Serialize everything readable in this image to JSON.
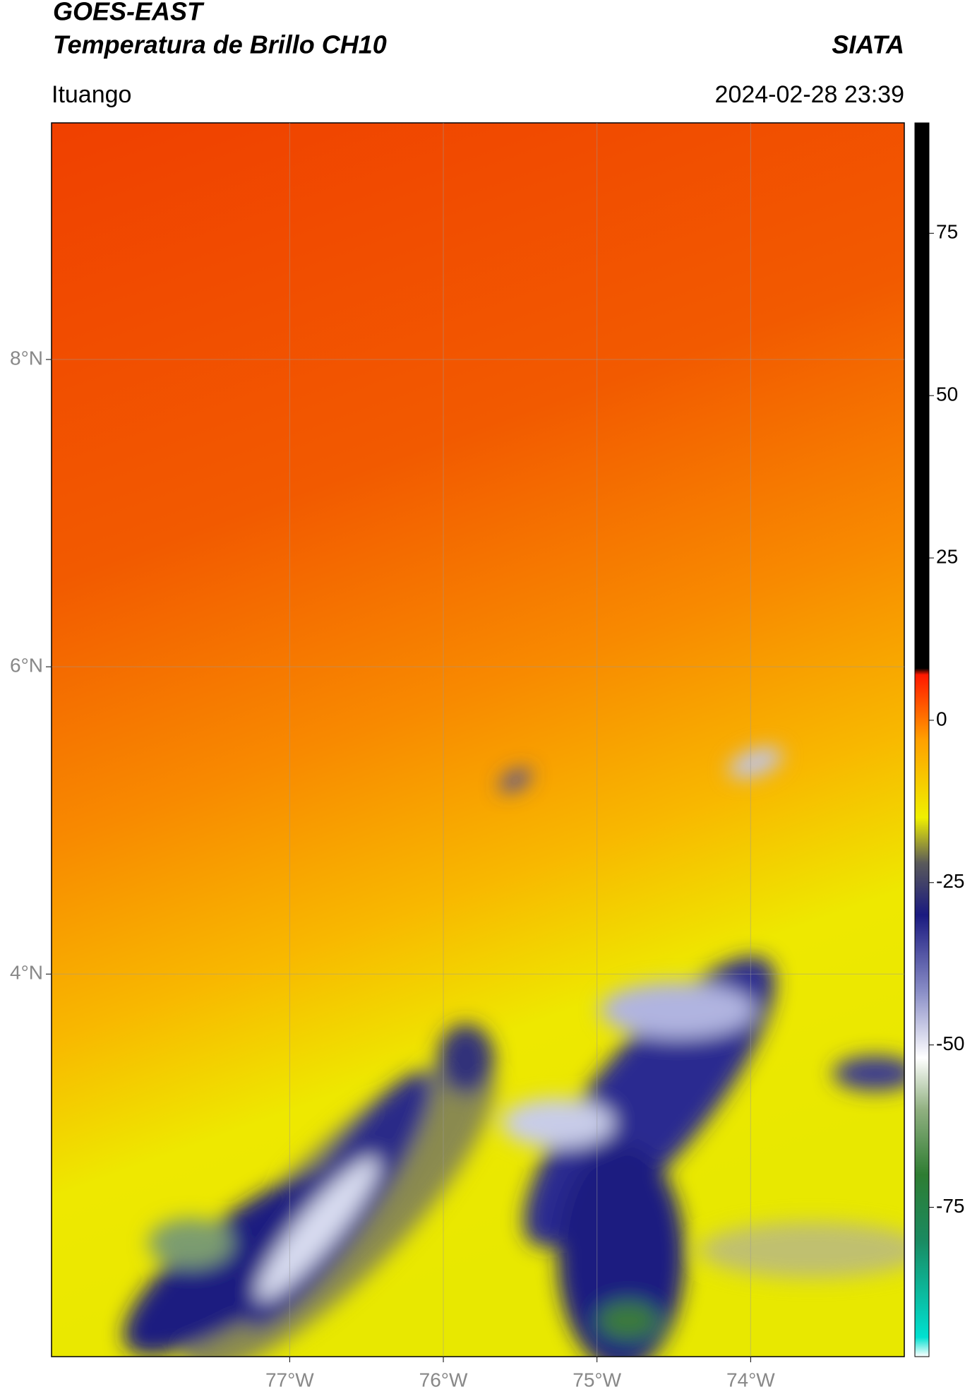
{
  "chart_data": {
    "type": "map",
    "title": "GOES-EAST",
    "subtitle": "Temperatura de Brillo CH10",
    "source": "SIATA",
    "region": "Ituango",
    "datetime": "2024-02-28 23:39",
    "xlim": [
      -78.55,
      -73.0
    ],
    "ylim": [
      1.51,
      9.54
    ],
    "xticks": [
      {
        "value": -77,
        "label": "77°W"
      },
      {
        "value": -76,
        "label": "76°W"
      },
      {
        "value": -75,
        "label": "75°W"
      },
      {
        "value": -74,
        "label": "74°W"
      }
    ],
    "yticks": [
      {
        "value": 8,
        "label": "8°N"
      },
      {
        "value": 6,
        "label": "6°N"
      },
      {
        "value": 4,
        "label": "4°N"
      }
    ],
    "grid": true,
    "colorbar": {
      "lim": [
        -98,
        92
      ],
      "ticks": [
        75,
        50,
        25,
        0,
        -25,
        -50,
        -75
      ],
      "stops": [
        {
          "value": -98,
          "color": "#ffffff"
        },
        {
          "value": -95,
          "color": "#00e0d0"
        },
        {
          "value": -80,
          "color": "#1a8a60"
        },
        {
          "value": -70,
          "color": "#2e7d32"
        },
        {
          "value": -60,
          "color": "#90b080"
        },
        {
          "value": -52,
          "color": "#ffffff"
        },
        {
          "value": -42,
          "color": "#8c90c8"
        },
        {
          "value": -30,
          "color": "#1a1a80"
        },
        {
          "value": -22,
          "color": "#5a5a5a"
        },
        {
          "value": -15,
          "color": "#f0f000"
        },
        {
          "value": -3,
          "color": "#ffa000"
        },
        {
          "value": 7,
          "color": "#ff1800"
        },
        {
          "value": 8,
          "color": "#000000"
        },
        {
          "value": 92,
          "color": "#000000"
        }
      ]
    }
  }
}
